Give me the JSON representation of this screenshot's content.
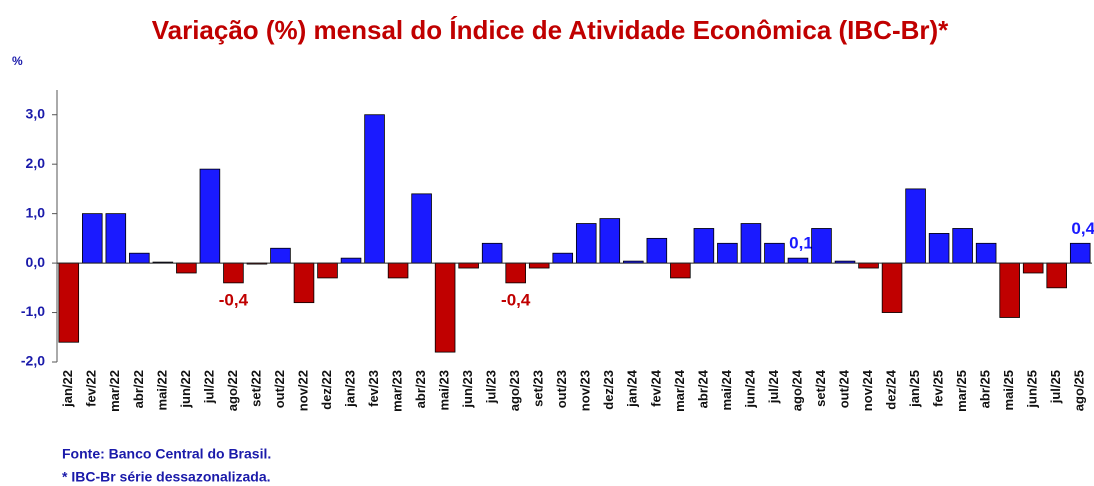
{
  "chart_data": {
    "type": "bar",
    "title": "Variação (%) mensal do Índice de Atividade Econômica (IBC-Br)*",
    "y_axis_label": "%",
    "categories": [
      "jan/22",
      "fev/22",
      "mar/22",
      "abr/22",
      "mai/22",
      "jun/22",
      "jul/22",
      "ago/22",
      "set/22",
      "out/22",
      "nov/22",
      "dez/22",
      "jan/23",
      "fev/23",
      "mar/23",
      "abr/23",
      "mai/23",
      "jun/23",
      "jul/23",
      "ago/23",
      "set/23",
      "out/23",
      "nov/23",
      "dez/23",
      "jan/24",
      "fev/24",
      "mar/24",
      "abr/24",
      "mai/24",
      "jun/24",
      "jul/24",
      "ago/24",
      "set/24",
      "out/24",
      "nov/24",
      "dez/24",
      "jan/25",
      "fev/25",
      "mar/25",
      "abr/25",
      "mai/25",
      "jun/25",
      "jul/25",
      "ago/25"
    ],
    "values": [
      -1.6,
      1.0,
      1.0,
      0.2,
      0.02,
      -0.2,
      1.9,
      -0.4,
      -0.02,
      0.3,
      -0.8,
      -0.3,
      0.1,
      3.0,
      -0.3,
      1.4,
      -1.8,
      -0.1,
      0.4,
      -0.4,
      -0.1,
      0.2,
      0.8,
      0.9,
      0.04,
      0.5,
      -0.3,
      0.7,
      0.4,
      0.8,
      0.4,
      0.1,
      0.7,
      0.04,
      -0.1,
      -1.0,
      1.5,
      0.6,
      0.7,
      0.4,
      -1.1,
      -0.2,
      -0.5,
      0.4
    ],
    "value_labels": [
      null,
      null,
      null,
      null,
      null,
      null,
      null,
      "-0,4",
      null,
      null,
      null,
      null,
      null,
      null,
      null,
      null,
      null,
      null,
      null,
      "-0,4",
      null,
      null,
      null,
      null,
      null,
      null,
      null,
      null,
      null,
      null,
      null,
      "0,1",
      null,
      null,
      null,
      null,
      null,
      null,
      null,
      null,
      null,
      null,
      null,
      "0,4"
    ],
    "positive_color": "#1a1aff",
    "negative_color": "#c00000",
    "ylim": [
      -2,
      3.5
    ],
    "yticks": [
      {
        "value": -2,
        "label": "-2,0"
      },
      {
        "value": -1,
        "label": "-1,0"
      },
      {
        "value": 0,
        "label": "0,0"
      },
      {
        "value": 1,
        "label": "1,0"
      },
      {
        "value": 2,
        "label": "2,0"
      },
      {
        "value": 3,
        "label": "3,0"
      }
    ],
    "notes": [
      "Fonte: Banco Central do Brasil.",
      "* IBC-Br série dessazonalizada."
    ]
  }
}
